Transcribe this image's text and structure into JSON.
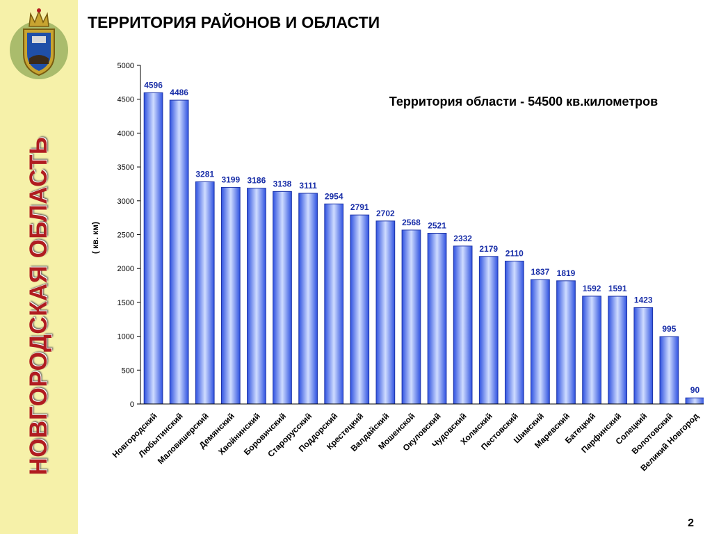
{
  "slide": {
    "title": "ТЕРРИТОРИЯ РАЙОНОВ И ОБЛАСТИ",
    "side_title": "НОВГОРОДСКАЯ ОБЛАСТЬ",
    "page_number": "2"
  },
  "colors": {
    "sidebar": "#f6f1a9",
    "side_title": "#b01c20",
    "bar_dark": "#2f52e0",
    "bar_light": "#cfdcff",
    "data_label": "#1a2fa8"
  },
  "icons": {
    "emblem": "coat-of-arms-icon"
  },
  "chart_data": {
    "type": "bar",
    "title": "",
    "annotation": "Территория области - 54500 кв.километров",
    "xlabel": "",
    "ylabel": "( кв. км)",
    "ylim": [
      0,
      5000
    ],
    "yticks": [
      0,
      500,
      1000,
      1500,
      2000,
      2500,
      3000,
      3500,
      4000,
      4500,
      5000
    ],
    "grid": false,
    "legend": "none",
    "categories": [
      "Новгородский",
      "Любытинский",
      "Маловишерский",
      "Демянский",
      "Хвойнинский",
      "Боровичский",
      "Старорусский",
      "Поддорский",
      "Крестецкий",
      "Валдайский",
      "Мошенской",
      "Окуловский",
      "Чудовский",
      "Холмский",
      "Пестовский",
      "Шимский",
      "Маревский",
      "Батецкий",
      "Парфинский",
      "Солецкий",
      "Волотовский",
      "Великий Новгород"
    ],
    "values": [
      4596,
      4486,
      3281,
      3199,
      3186,
      3138,
      3111,
      2954,
      2791,
      2702,
      2568,
      2521,
      2332,
      2179,
      2110,
      1837,
      1819,
      1592,
      1591,
      1423,
      995,
      90
    ]
  }
}
